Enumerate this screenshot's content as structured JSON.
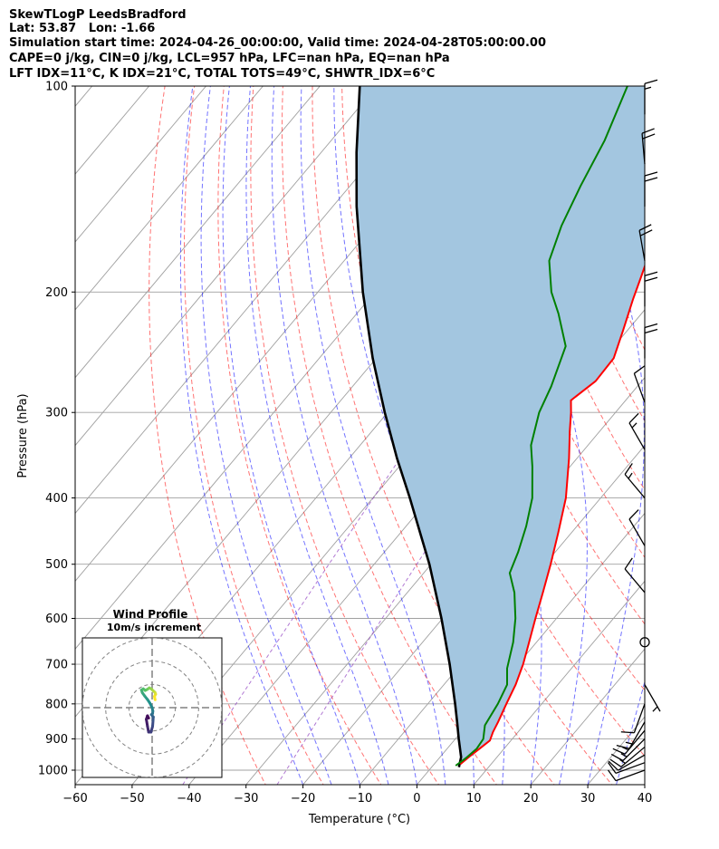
{
  "header": {
    "line1": "SkewTLogP LeedsBradford",
    "line2": "Lat: 53.87   Lon: -1.66",
    "line3": "Simulation start time: 2024-04-26_00:00:00, Valid time: 2024-04-28T05:00:00.00",
    "line4": "CAPE=0 j/kg, CIN=0 j/kg, LCL=957 hPa, LFC=nan hPa, EQ=nan hPa",
    "line5": "LFT IDX=11°C, K IDX=21°C, TOTAL TOTS=49°C, SHWTR_IDX=6°C"
  },
  "chart_data": {
    "type": "line",
    "xlabel": "Temperature (°C)",
    "ylabel": "Pressure (hPa)",
    "xlim": [
      -60,
      40
    ],
    "ylim": [
      1050,
      100
    ],
    "yscale": "log",
    "skew": true,
    "grid": true,
    "x_ticks": [
      "−60",
      "−50",
      "−40",
      "−30",
      "−20",
      "−10",
      "0",
      "10",
      "20",
      "30",
      "40"
    ],
    "y_ticks": [
      "100",
      "200",
      "300",
      "400",
      "500",
      "600",
      "700",
      "800",
      "900",
      "1000"
    ],
    "colors": {
      "temperature": "#ff0000",
      "dewpoint": "#008000",
      "parcel": "#000000",
      "fill": "#a3c6e0",
      "dry_adiabat": "#ff0000",
      "moist_adiabat": "#0000ff",
      "mixing_ratio": "#9040c0",
      "isotherm": "#a0a0a0"
    },
    "temperature": [
      {
        "p": 980,
        "t": 4.6
      },
      {
        "p": 955,
        "t": 5.1
      },
      {
        "p": 930,
        "t": 5.7
      },
      {
        "p": 905,
        "t": 6.3
      },
      {
        "p": 880,
        "t": 5.6
      },
      {
        "p": 850,
        "t": 5.0
      },
      {
        "p": 800,
        "t": 3.8
      },
      {
        "p": 750,
        "t": 2.6
      },
      {
        "p": 700,
        "t": 0.9
      },
      {
        "p": 650,
        "t": -1.3
      },
      {
        "p": 600,
        "t": -3.7
      },
      {
        "p": 550,
        "t": -6.2
      },
      {
        "p": 500,
        "t": -9.0
      },
      {
        "p": 450,
        "t": -12.3
      },
      {
        "p": 400,
        "t": -16.1
      },
      {
        "p": 350,
        "t": -21.4
      },
      {
        "p": 320,
        "t": -25.2
      },
      {
        "p": 300,
        "t": -27.8
      },
      {
        "p": 288,
        "t": -29.6
      },
      {
        "p": 270,
        "t": -28.1
      },
      {
        "p": 250,
        "t": -28.3
      },
      {
        "p": 228,
        "t": -30.7
      },
      {
        "p": 205,
        "t": -33.6
      },
      {
        "p": 190,
        "t": -35.5
      },
      {
        "p": 175,
        "t": -37.6
      },
      {
        "p": 160,
        "t": -40.6
      },
      {
        "p": 145,
        "t": -44.1
      },
      {
        "p": 130,
        "t": -48.1
      },
      {
        "p": 115,
        "t": -53.0
      },
      {
        "p": 100,
        "t": -58.5
      }
    ],
    "dewpoint": [
      {
        "p": 985,
        "t": 4.0
      },
      {
        "p": 960,
        "t": 4.7
      },
      {
        "p": 930,
        "t": 5.2
      },
      {
        "p": 900,
        "t": 4.9
      },
      {
        "p": 860,
        "t": 3.2
      },
      {
        "p": 800,
        "t": 2.3
      },
      {
        "p": 750,
        "t": 1.1
      },
      {
        "p": 710,
        "t": -1.3
      },
      {
        "p": 650,
        "t": -4.1
      },
      {
        "p": 600,
        "t": -7.2
      },
      {
        "p": 550,
        "t": -11.2
      },
      {
        "p": 515,
        "t": -14.9
      },
      {
        "p": 480,
        "t": -16.5
      },
      {
        "p": 440,
        "t": -18.9
      },
      {
        "p": 400,
        "t": -22.0
      },
      {
        "p": 360,
        "t": -26.6
      },
      {
        "p": 335,
        "t": -30.0
      },
      {
        "p": 315,
        "t": -31.9
      },
      {
        "p": 300,
        "t": -33.4
      },
      {
        "p": 275,
        "t": -35.1
      },
      {
        "p": 240,
        "t": -38.5
      },
      {
        "p": 215,
        "t": -44.6
      },
      {
        "p": 200,
        "t": -49.0
      },
      {
        "p": 180,
        "t": -54.0
      },
      {
        "p": 160,
        "t": -57.0
      },
      {
        "p": 140,
        "t": -59.5
      },
      {
        "p": 120,
        "t": -62.0
      },
      {
        "p": 100,
        "t": -66.0
      }
    ],
    "parcel": [
      {
        "p": 990,
        "t": 4.8
      },
      {
        "p": 957,
        "t": 3.7
      },
      {
        "p": 900,
        "t": 0.6
      },
      {
        "p": 850,
        "t": -2.2
      },
      {
        "p": 800,
        "t": -5.2
      },
      {
        "p": 700,
        "t": -12.0
      },
      {
        "p": 600,
        "t": -20.2
      },
      {
        "p": 500,
        "t": -30.3
      },
      {
        "p": 400,
        "t": -43.5
      },
      {
        "p": 350,
        "t": -51.6
      },
      {
        "p": 300,
        "t": -60.5
      },
      {
        "p": 250,
        "t": -70.6
      },
      {
        "p": 200,
        "t": -82.1
      },
      {
        "p": 150,
        "t": -95.8
      },
      {
        "p": 125,
        "t": -103.8
      },
      {
        "p": 100,
        "t": -113.0
      }
    ],
    "wind_barbs": [
      {
        "p": 1000,
        "speed_kt": 10,
        "dir": 250
      },
      {
        "p": 975,
        "speed_kt": 10,
        "dir": 250
      },
      {
        "p": 950,
        "speed_kt": 10,
        "dir": 240
      },
      {
        "p": 925,
        "speed_kt": 15,
        "dir": 230
      },
      {
        "p": 900,
        "speed_kt": 15,
        "dir": 225
      },
      {
        "p": 875,
        "speed_kt": 15,
        "dir": 220
      },
      {
        "p": 850,
        "speed_kt": 15,
        "dir": 210
      },
      {
        "p": 800,
        "speed_kt": 10,
        "dir": 200
      },
      {
        "p": 750,
        "speed_kt": 5,
        "dir": 150
      },
      {
        "p": 650,
        "speed_kt": 0,
        "dir": 0
      },
      {
        "p": 550,
        "speed_kt": 10,
        "dir": 320
      },
      {
        "p": 470,
        "speed_kt": 10,
        "dir": 330
      },
      {
        "p": 400,
        "speed_kt": 15,
        "dir": 320
      },
      {
        "p": 340,
        "speed_kt": 15,
        "dir": 330
      },
      {
        "p": 290,
        "speed_kt": 10,
        "dir": 340
      },
      {
        "p": 250,
        "speed_kt": 20,
        "dir": 0
      },
      {
        "p": 210,
        "speed_kt": 20,
        "dir": 0
      },
      {
        "p": 180,
        "speed_kt": 20,
        "dir": 350
      },
      {
        "p": 150,
        "speed_kt": 20,
        "dir": 0
      },
      {
        "p": 130,
        "speed_kt": 20,
        "dir": 355
      },
      {
        "p": 110,
        "speed_kt": 15,
        "dir": 0
      }
    ],
    "hodograph": {
      "title": "Wind Profile",
      "subtitle": "10m/s increment",
      "rings_ms": [
        10,
        20,
        30
      ],
      "range_ms": 30,
      "points": [
        {
          "u": -1.5,
          "v": -4.5
        },
        {
          "u": -2.0,
          "v": -3.5
        },
        {
          "u": -2.5,
          "v": -5.0
        },
        {
          "u": -2.0,
          "v": -8.0
        },
        {
          "u": -1.5,
          "v": -10.5
        },
        {
          "u": -0.5,
          "v": -10.5
        },
        {
          "u": 0.2,
          "v": -8.0
        },
        {
          "u": 0.4,
          "v": -5.5
        },
        {
          "u": 0.5,
          "v": -4.0
        },
        {
          "u": -0.3,
          "v": -3.0
        },
        {
          "u": 0.2,
          "v": -2.5
        },
        {
          "u": 0.3,
          "v": -1.5
        },
        {
          "u": 0.0,
          "v": 0.0
        },
        {
          "u": -1.0,
          "v": 2.0
        },
        {
          "u": -2.0,
          "v": 3.5
        },
        {
          "u": -3.2,
          "v": 5.0
        },
        {
          "u": -4.2,
          "v": 6.4
        },
        {
          "u": -4.6,
          "v": 7.6
        },
        {
          "u": -3.8,
          "v": 8.1
        },
        {
          "u": -3.0,
          "v": 7.4
        },
        {
          "u": -2.0,
          "v": 7.9
        },
        {
          "u": -1.2,
          "v": 8.5
        },
        {
          "u": -0.3,
          "v": 8.0
        },
        {
          "u": 0.5,
          "v": 7.2
        },
        {
          "u": 1.2,
          "v": 6.6
        },
        {
          "u": 1.5,
          "v": 5.8
        },
        {
          "u": 1.0,
          "v": 4.8
        },
        {
          "u": 1.3,
          "v": 3.4
        }
      ]
    }
  }
}
